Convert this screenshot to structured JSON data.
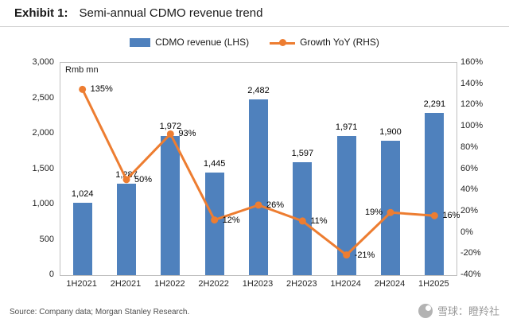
{
  "header": {
    "exhibit_label": "Exhibit 1:",
    "title": "Semi-annual CDMO revenue trend"
  },
  "legend": {
    "bar_label": "CDMO revenue (LHS)",
    "line_label": "Growth YoY (RHS)"
  },
  "footer": {
    "source": "Source: Company data; Morgan Stanley Research.",
    "watermark": "雪球：瞪羚社"
  },
  "colors": {
    "bar": "#4F81BD",
    "line": "#ED7D31"
  },
  "chart_data": {
    "type": "combo",
    "categories": [
      "1H2021",
      "2H2021",
      "1H2022",
      "2H2022",
      "1H2023",
      "2H2023",
      "1H2024",
      "2H2024",
      "1H2025"
    ],
    "series": [
      {
        "name": "CDMO revenue (LHS)",
        "type": "bar",
        "axis": "left",
        "values": [
          1024,
          1287,
          1972,
          1445,
          2482,
          1597,
          1971,
          1900,
          2291
        ],
        "labels": [
          "1,024",
          "1,287",
          "1,972",
          "1,445",
          "2,482",
          "1,597",
          "1,971",
          "1,900",
          "2,291"
        ],
        "color": "#4F81BD"
      },
      {
        "name": "Growth YoY (RHS)",
        "type": "line",
        "axis": "right",
        "values": [
          135,
          50,
          93,
          12,
          26,
          11,
          -21,
          19,
          16
        ],
        "labels": [
          "135%",
          "50%",
          "93%",
          "12%",
          "26%",
          "11%",
          "-21%",
          "19%",
          "16%"
        ],
        "color": "#ED7D31"
      }
    ],
    "left_axis": {
      "title": "Rmb mn",
      "min": 0,
      "max": 3000,
      "step": 500,
      "tick_labels": [
        "0",
        "500",
        "1,000",
        "1,500",
        "2,000",
        "2,500",
        "3,000"
      ]
    },
    "right_axis": {
      "min": -40,
      "max": 160,
      "step": 20,
      "tick_labels": [
        "-40%",
        "-20%",
        "0%",
        "20%",
        "40%",
        "60%",
        "80%",
        "100%",
        "120%",
        "140%",
        "160%"
      ]
    },
    "grid": false,
    "legend_position": "top"
  }
}
